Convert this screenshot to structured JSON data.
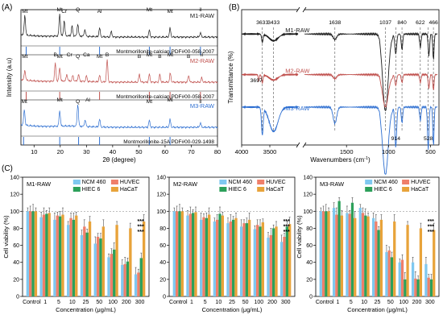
{
  "panels": {
    "A": "(A)",
    "B": "(B)",
    "C": "(C)"
  },
  "colors": {
    "M1": "#1a1a1a",
    "M2": "#c0504d",
    "M3": "#2e6fd1",
    "NCM 460": "#7fc8f0",
    "HUVEC": "#ef7f6a",
    "HIEC 6": "#2ca05a",
    "HaCaT": "#e8a33a",
    "ref": "#2e6fd1",
    "refM2": "#c0504d"
  },
  "chart_data": [
    {
      "type": "line",
      "panel": "A",
      "xlabel": "2θ (degree)",
      "ylabel": "Intensity (a.u)",
      "xlim": [
        5,
        80
      ],
      "xticks": [
        10,
        20,
        30,
        40,
        50,
        60,
        70,
        80
      ],
      "series": [
        {
          "name": "M1-RAW",
          "color_key": "M1",
          "peaks": [
            [
              6.5,
              0.9
            ],
            [
              19.8,
              1
            ],
            [
              21.5,
              0.7
            ],
            [
              24.5,
              0.45
            ],
            [
              26.7,
              0.55
            ],
            [
              29.4,
              0.3
            ],
            [
              35,
              0.4
            ],
            [
              39.5,
              0.25
            ],
            [
              54,
              0.3
            ],
            [
              61.9,
              0.4
            ],
            [
              73.5,
              0.2
            ]
          ],
          "annotations": [
            {
              "text": "Mt",
              "x": 6.5
            },
            {
              "text": "Mt",
              "x": 19.8
            },
            {
              "text": "Cr",
              "x": 21.5
            },
            {
              "text": "Q",
              "x": 26.7
            },
            {
              "text": "Al",
              "x": 35
            },
            {
              "text": "Mt",
              "x": 54
            },
            {
              "text": "Mt",
              "x": 61.9
            },
            {
              "text": "il",
              "x": 73.5
            }
          ],
          "reference": {
            "label": "Montmorillonite-calcian",
            "pdf": "PDF#00-058-2007",
            "lines": [
              7,
              19.8,
              35,
              54,
              61.9,
              73.5
            ]
          }
        },
        {
          "name": "M2-RAW",
          "color_key": "M2",
          "peaks": [
            [
              6.5,
              0.45
            ],
            [
              18.1,
              0.8
            ],
            [
              19.8,
              0.6
            ],
            [
              22.5,
              0.3
            ],
            [
              24.8,
              0.25
            ],
            [
              27,
              0.3
            ],
            [
              30,
              0.25
            ],
            [
              35,
              0.3
            ],
            [
              37.9,
              1
            ],
            [
              50.2,
              0.35
            ],
            [
              54,
              0.35
            ],
            [
              58,
              0.35
            ],
            [
              62,
              0.4
            ],
            [
              69,
              0.3
            ],
            [
              74,
              0.2
            ]
          ],
          "annotations": [
            {
              "text": "Mt",
              "x": 6.5
            },
            {
              "text": "B",
              "x": 18.1
            },
            {
              "text": "Mt",
              "x": 19.8
            },
            {
              "text": "Cr",
              "x": 23.5
            },
            {
              "text": "Q",
              "x": 26.7
            },
            {
              "text": "Ca",
              "x": 30
            },
            {
              "text": "Mt",
              "x": 35
            },
            {
              "text": "B",
              "x": 37.9
            },
            {
              "text": "B",
              "x": 50.2
            },
            {
              "text": "Mt",
              "x": 54
            },
            {
              "text": "B",
              "x": 58
            },
            {
              "text": "Mt",
              "x": 62
            },
            {
              "text": "B",
              "x": 69
            },
            {
              "text": "il",
              "x": 74
            }
          ],
          "reference": {
            "label": "Montmorillonite-calcian",
            "pdf": "PDF#00-058-2007",
            "lines": [
              7,
              19.8,
              35,
              54,
              61.9,
              73.5
            ]
          }
        },
        {
          "name": "M3-RAW",
          "color_key": "M3",
          "peaks": [
            [
              6.3,
              0.7
            ],
            [
              19.8,
              0.7
            ],
            [
              26.7,
              1
            ],
            [
              29.5,
              0.3
            ],
            [
              35,
              0.35
            ],
            [
              54,
              0.3
            ],
            [
              61.9,
              0.35
            ],
            [
              73.5,
              0.2
            ]
          ],
          "annotations": [
            {
              "text": "Mt",
              "x": 6.3
            },
            {
              "text": "Mt",
              "x": 19.8
            },
            {
              "text": "Q",
              "x": 26.7
            },
            {
              "text": "Al",
              "x": 30.5
            },
            {
              "text": "Mt",
              "x": 54
            },
            {
              "text": "Mt",
              "x": 61.9
            },
            {
              "text": "il",
              "x": 73.5
            }
          ],
          "reference": {
            "label": "Montmorillonite-15A",
            "pdf": "PDF#00-029-1498",
            "lines": [
              6,
              19.8,
              27,
              35,
              54,
              61.9
            ]
          }
        }
      ]
    },
    {
      "type": "line",
      "panel": "B",
      "xlabel": "Wavenumbers (cm-1)",
      "ylabel": "Transmittance (%)",
      "xaxis_segments": [
        [
          4000,
          3000
        ],
        [
          2000,
          400
        ]
      ],
      "xticks": [
        4000,
        3500,
        1500,
        1000,
        500
      ],
      "series": [
        {
          "name": "M1-RAW",
          "color_key": "M1",
          "baseline": 0.82,
          "bands": [
            [
              3633,
              0.06,
              18
            ],
            [
              3433,
              0.05,
              110
            ],
            [
              1638,
              0.04,
              30
            ],
            [
              1037,
              0.55,
              45
            ],
            [
              914,
              0.15,
              15
            ],
            [
              840,
              0.12,
              12
            ],
            [
              622,
              0.1,
              12
            ],
            [
              520,
              0.16,
              12
            ],
            [
              466,
              0.2,
              10
            ]
          ]
        },
        {
          "name": "M2-RAW",
          "color_key": "M2",
          "baseline": 0.52,
          "bands": [
            [
              3697,
              0.05,
              12
            ],
            [
              3633,
              0.06,
              18
            ],
            [
              3433,
              0.04,
              110
            ],
            [
              1638,
              0.03,
              30
            ],
            [
              1037,
              0.22,
              45
            ],
            [
              914,
              0.08,
              15
            ],
            [
              840,
              0.06,
              12
            ],
            [
              622,
              0.06,
              12
            ],
            [
              520,
              0.1,
              12
            ],
            [
              466,
              0.12,
              10
            ]
          ]
        },
        {
          "name": "M3-RAW",
          "color_key": "M3",
          "baseline": 0.28,
          "bands": [
            [
              3633,
              0.2,
              22
            ],
            [
              3433,
              0.18,
              110
            ],
            [
              1638,
              0.12,
              30
            ],
            [
              1037,
              0.48,
              45
            ],
            [
              914,
              0.3,
              15
            ],
            [
              840,
              0.12,
              12
            ],
            [
              622,
              0.1,
              12
            ],
            [
              528,
              0.32,
              12
            ],
            [
              466,
              0.3,
              10
            ]
          ]
        }
      ],
      "band_labels": [
        3633,
        3433,
        1638,
        1037,
        840,
        622,
        466
      ],
      "extra_labels": [
        {
          "text": "3697",
          "wn": 3697,
          "series": "M2-RAW"
        },
        {
          "text": "914",
          "wn": 914,
          "series": "M3-RAW"
        },
        {
          "text": "528",
          "wn": 528,
          "series": "M3-RAW"
        }
      ],
      "dashed_lines": [
        3633,
        3433,
        1638,
        1037,
        914,
        840,
        622,
        528,
        466
      ]
    },
    {
      "type": "bar",
      "panel": "C1",
      "title": "M1-RAW",
      "xlabel": "Concentration (μg/mL)",
      "ylabel": "Cell viability (%)",
      "ylim": [
        0,
        140
      ],
      "yticks": [
        0,
        20,
        40,
        60,
        80,
        100,
        120,
        140
      ],
      "categories": [
        "Control",
        "1",
        "5",
        "10",
        "25",
        "50",
        "100",
        "200",
        "300"
      ],
      "series": [
        {
          "name": "NCM 460",
          "values": [
            100,
            93,
            90,
            84,
            72,
            62,
            46,
            37,
            26
          ]
        },
        {
          "name": "HUVEC",
          "values": [
            100,
            96,
            95,
            92,
            82,
            70,
            50,
            38,
            28
          ]
        },
        {
          "name": "HIEC 6",
          "values": [
            100,
            97,
            94,
            90,
            75,
            68,
            55,
            41,
            45
          ]
        },
        {
          "name": "HaCaT",
          "values": [
            100,
            98,
            96,
            95,
            88,
            82,
            84,
            80,
            88
          ]
        }
      ],
      "significance": "***"
    },
    {
      "type": "bar",
      "panel": "C2",
      "title": "M2-RAW",
      "xlabel": "Concentration (μg/mL)",
      "ylabel": "",
      "ylim": [
        0,
        140
      ],
      "yticks": [
        0,
        20,
        40,
        60,
        80,
        100,
        120,
        140
      ],
      "categories": [
        "Control",
        "1",
        "5",
        "10",
        "25",
        "50",
        "100",
        "200",
        "300"
      ],
      "series": [
        {
          "name": "NCM 460",
          "values": [
            100,
            95,
            90,
            88,
            86,
            82,
            79,
            69,
            64
          ]
        },
        {
          "name": "HUVEC",
          "values": [
            100,
            97,
            93,
            90,
            88,
            86,
            84,
            72,
            70
          ]
        },
        {
          "name": "HIEC 6",
          "values": [
            100,
            98,
            92,
            97,
            90,
            86,
            82,
            80,
            82
          ]
        },
        {
          "name": "HaCaT",
          "values": [
            100,
            99,
            96,
            95,
            92,
            90,
            87,
            82,
            85
          ]
        }
      ],
      "significance": "***"
    },
    {
      "type": "bar",
      "panel": "C3",
      "title": "M3-RAW",
      "xlabel": "Concentration (μg/mL)",
      "ylabel": "Cell viability (%)",
      "ylim": [
        0,
        140
      ],
      "yticks": [
        0,
        20,
        40,
        60,
        80,
        100,
        120,
        140
      ],
      "categories": [
        "Control",
        "1",
        "5",
        "10",
        "25",
        "50",
        "100",
        "200",
        "300"
      ],
      "series": [
        {
          "name": "NCM 460",
          "values": [
            100,
            104,
            98,
            104,
            92,
            52,
            40,
            40,
            38
          ]
        },
        {
          "name": "HUVEC",
          "values": [
            100,
            96,
            97,
            98,
            88,
            54,
            43,
            21,
            22
          ]
        },
        {
          "name": "HIEC 6",
          "values": [
            100,
            112,
            110,
            95,
            78,
            46,
            20,
            20,
            20
          ]
        },
        {
          "name": "HaCaT",
          "values": [
            100,
            95,
            92,
            94,
            90,
            88,
            84,
            80,
            78
          ]
        }
      ],
      "significance": "***"
    }
  ]
}
